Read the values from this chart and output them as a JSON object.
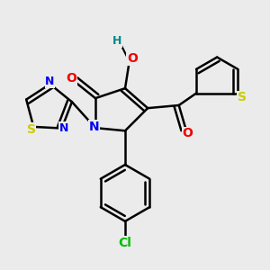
{
  "background_color": "#ebebeb",
  "atom_colors": {
    "C": "#000000",
    "N": "#0000ee",
    "O": "#ee0000",
    "S": "#cccc00",
    "Cl": "#00bb00",
    "H": "#008888"
  },
  "bond_color": "#000000",
  "bond_width": 1.8
}
